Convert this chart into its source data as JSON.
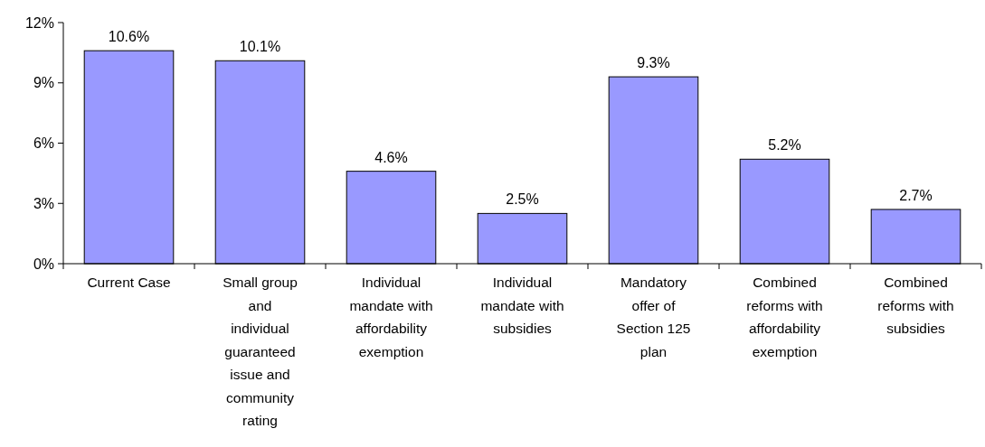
{
  "chart_data": {
    "type": "bar",
    "categories": [
      "Current Case",
      "Small group and individual guaranteed issue and community rating",
      "Individual mandate with affordability exemption",
      "Individual mandate with subsidies",
      "Mandatory offer of Section 125 plan",
      "Combined reforms with affordability exemption",
      "Combined reforms with subsidies"
    ],
    "values": [
      10.6,
      10.1,
      4.6,
      2.5,
      9.3,
      5.2,
      2.7
    ],
    "value_labels": [
      "10.6%",
      "10.1%",
      "4.6%",
      "2.5%",
      "9.3%",
      "5.2%",
      "2.7%"
    ],
    "color": "#9999ff",
    "ylim": [
      0,
      12
    ],
    "yticks": [
      {
        "value": 0,
        "label": "0%"
      },
      {
        "value": 3,
        "label": "3%"
      },
      {
        "value": 6,
        "label": "6%"
      },
      {
        "value": 9,
        "label": "9%"
      },
      {
        "value": 12,
        "label": "12%"
      }
    ],
    "grid": false
  }
}
